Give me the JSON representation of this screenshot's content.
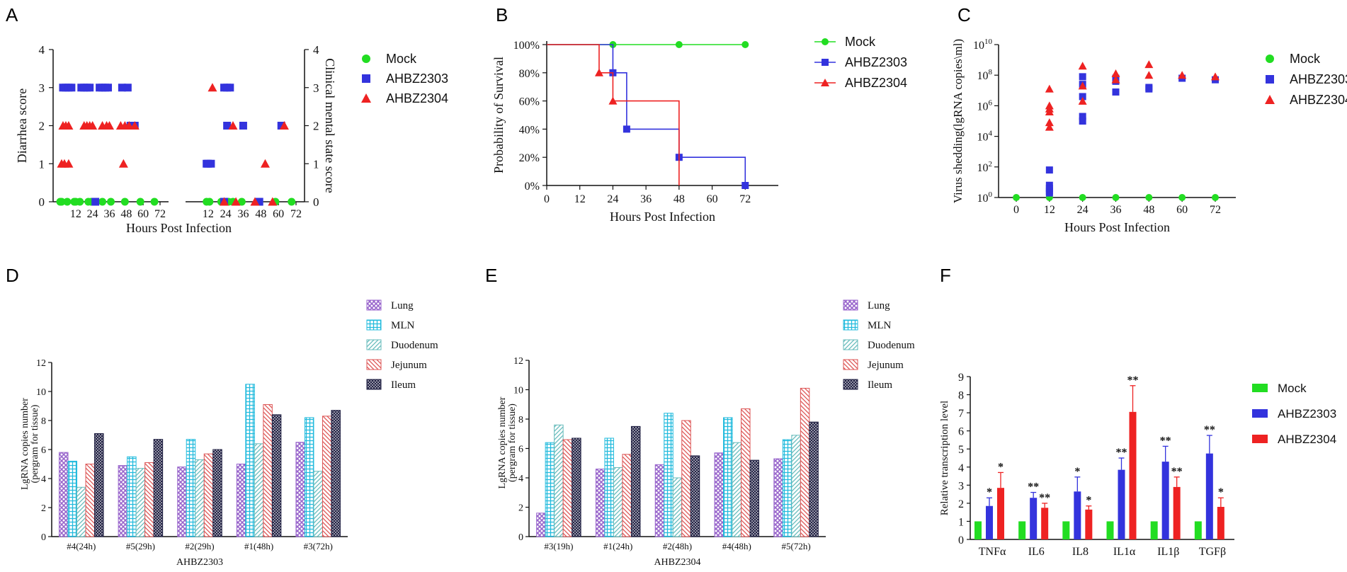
{
  "colors": {
    "mock": "#22dd22",
    "ahbz2303": "#3333dd",
    "ahbz2304": "#ee2222",
    "lung": "#9966cc",
    "mln": "#22bbdd",
    "duodenum": "#66bbbb",
    "jejunum": "#dd5555",
    "ileum": "#222244"
  },
  "chart_data": [
    {
      "panel": "A",
      "type": "scatter",
      "xlabel": "Hours Post Infection",
      "ylabel_left": "Diarrhea score",
      "ylabel_right": "Clinical mental state score",
      "ylim": [
        0,
        4
      ],
      "yticks": [
        "0",
        "1",
        "2",
        "3",
        "4"
      ],
      "xticks_left": [
        "12",
        "24",
        "36",
        "48",
        "60",
        "72"
      ],
      "xticks_right": [
        "12",
        "24",
        "36",
        "48",
        "60",
        "72"
      ],
      "legend": [
        "Mock",
        "AHBZ2303",
        "AHBZ2304"
      ],
      "series": [
        {
          "name": "Mock",
          "diarrhea": [
            [
              0,
              0
            ],
            [
              1,
              0
            ],
            [
              5,
              0
            ],
            [
              10,
              0
            ],
            [
              11,
              0
            ],
            [
              14,
              0
            ],
            [
              20,
              0
            ],
            [
              22,
              0
            ],
            [
              30,
              0
            ],
            [
              36,
              0
            ],
            [
              46,
              0
            ],
            [
              57,
              0
            ],
            [
              67,
              0
            ]
          ],
          "mental": [
            [
              10,
              0
            ],
            [
              12,
              0
            ],
            [
              20,
              0
            ],
            [
              25,
              0
            ],
            [
              28,
              0
            ],
            [
              34,
              0
            ],
            [
              46,
              0
            ],
            [
              57,
              0
            ],
            [
              68,
              0
            ]
          ]
        },
        {
          "name": "AHBZ2303",
          "diarrhea": [
            [
              2,
              3
            ],
            [
              4,
              3
            ],
            [
              6,
              3
            ],
            [
              8,
              3
            ],
            [
              15,
              3
            ],
            [
              17,
              3
            ],
            [
              19,
              3
            ],
            [
              21,
              3
            ],
            [
              28,
              3
            ],
            [
              30,
              3
            ],
            [
              32,
              3
            ],
            [
              34,
              3
            ],
            [
              44,
              3
            ],
            [
              48,
              3
            ],
            [
              50,
              2
            ],
            [
              53,
              2
            ],
            [
              25,
              0
            ]
          ],
          "mental": [
            [
              10,
              1
            ],
            [
              11,
              1
            ],
            [
              13,
              1
            ],
            [
              22,
              3
            ],
            [
              24,
              3
            ],
            [
              26,
              3
            ],
            [
              24,
              2
            ],
            [
              35,
              2
            ],
            [
              61,
              2
            ],
            [
              22,
              0
            ],
            [
              46,
              0
            ]
          ]
        },
        {
          "name": "AHBZ2304",
          "diarrhea": [
            [
              2,
              2
            ],
            [
              4,
              2
            ],
            [
              6,
              2
            ],
            [
              1,
              1
            ],
            [
              3,
              1
            ],
            [
              6,
              1
            ],
            [
              17,
              2
            ],
            [
              19,
              2
            ],
            [
              21,
              2
            ],
            [
              23,
              2
            ],
            [
              30,
              2
            ],
            [
              33,
              2
            ],
            [
              35,
              2
            ],
            [
              43,
              2
            ],
            [
              46,
              2
            ],
            [
              49,
              2
            ],
            [
              53,
              2
            ],
            [
              45,
              1
            ]
          ],
          "mental": [
            [
              14,
              3
            ],
            [
              28,
              2
            ],
            [
              50,
              1
            ],
            [
              63,
              2
            ],
            [
              22,
              0
            ],
            [
              30,
              0
            ],
            [
              43,
              0
            ],
            [
              55,
              0
            ]
          ]
        }
      ]
    },
    {
      "panel": "B",
      "type": "line",
      "xlabel": "Hours Post Infection",
      "ylabel": "Probability of Survival",
      "xlim": [
        0,
        84
      ],
      "xticks": [
        "0",
        "12",
        "24",
        "36",
        "48",
        "60",
        "72"
      ],
      "ylim": [
        0,
        100
      ],
      "yticks": [
        "0%",
        "20%",
        "40%",
        "60%",
        "80%",
        "100%"
      ],
      "legend": [
        "Mock",
        "AHBZ2303",
        "AHBZ2304"
      ],
      "series": [
        {
          "name": "Mock",
          "steps": [
            [
              0,
              100
            ],
            [
              72,
              100
            ]
          ],
          "markers": [
            [
              24,
              100
            ],
            [
              48,
              100
            ],
            [
              72,
              100
            ]
          ]
        },
        {
          "name": "AHBZ2303",
          "steps": [
            [
              0,
              100
            ],
            [
              24,
              100
            ],
            [
              24,
              80
            ],
            [
              29,
              80
            ],
            [
              29,
              40
            ],
            [
              48,
              40
            ],
            [
              48,
              20
            ],
            [
              72,
              20
            ],
            [
              72,
              0
            ]
          ],
          "markers": [
            [
              24,
              80
            ],
            [
              29,
              40
            ],
            [
              48,
              20
            ],
            [
              72,
              0
            ]
          ]
        },
        {
          "name": "AHBZ2304",
          "steps": [
            [
              0,
              100
            ],
            [
              19,
              100
            ],
            [
              19,
              80
            ],
            [
              24,
              80
            ],
            [
              24,
              60
            ],
            [
              48,
              60
            ],
            [
              48,
              0
            ]
          ],
          "markers": [
            [
              19,
              80
            ],
            [
              24,
              60
            ]
          ]
        }
      ]
    },
    {
      "panel": "C",
      "type": "scatter",
      "xlabel": "Hours Post Infection",
      "ylabel": "Virus shedding(lgRNA copies\\ml)",
      "xticks": [
        "0",
        "12",
        "24",
        "36",
        "48",
        "60",
        "72"
      ],
      "ylim_log10": [
        0,
        10
      ],
      "ytick_base": "10",
      "ytick_exponents": [
        "0",
        "2",
        "4",
        "6",
        "8",
        "10"
      ],
      "legend": [
        "Mock",
        "AHBZ2303",
        "AHBZ2304"
      ],
      "series": [
        {
          "name": "Mock",
          "log10": [
            [
              0,
              0
            ],
            [
              12,
              0
            ],
            [
              24,
              0
            ],
            [
              36,
              0
            ],
            [
              48,
              0
            ],
            [
              60,
              0
            ],
            [
              72,
              0
            ]
          ]
        },
        {
          "name": "AHBZ2303",
          "log10": [
            [
              12,
              1.8
            ],
            [
              12,
              0.8
            ],
            [
              12,
              0.6
            ],
            [
              12,
              0.4
            ],
            [
              12,
              0.3
            ],
            [
              24,
              7.9
            ],
            [
              24,
              7.4
            ],
            [
              24,
              6.6
            ],
            [
              24,
              5.3
            ],
            [
              24,
              5.0
            ],
            [
              36,
              7.8
            ],
            [
              36,
              7.6
            ],
            [
              36,
              6.9
            ],
            [
              48,
              7.2
            ],
            [
              48,
              7.1
            ],
            [
              60,
              7.8
            ],
            [
              72,
              7.7
            ]
          ]
        },
        {
          "name": "AHBZ2304",
          "log10": [
            [
              12,
              7.1
            ],
            [
              12,
              6.0
            ],
            [
              12,
              5.8
            ],
            [
              12,
              5.6
            ],
            [
              12,
              4.9
            ],
            [
              12,
              4.6
            ],
            [
              24,
              8.6
            ],
            [
              24,
              7.3
            ],
            [
              24,
              6.3
            ],
            [
              36,
              8.1
            ],
            [
              36,
              7.7
            ],
            [
              48,
              8.7
            ],
            [
              48,
              8.0
            ],
            [
              60,
              8.0
            ],
            [
              72,
              7.9
            ]
          ]
        }
      ]
    },
    {
      "panel": "D",
      "type": "bar",
      "xlabel": "AHBZ2303",
      "ylabel": "LgRNA copies number (pergram for tissue)",
      "categories": [
        "#4(24h)",
        "#5(29h)",
        "#2(29h)",
        "#1(48h)",
        "#3(72h)"
      ],
      "ylim": [
        0,
        12
      ],
      "yticks": [
        "0",
        "2",
        "4",
        "6",
        "8",
        "10",
        "12"
      ],
      "series": [
        {
          "name": "Lung",
          "values": [
            5.8,
            4.9,
            4.8,
            5.0,
            6.5
          ]
        },
        {
          "name": "MLN",
          "values": [
            5.2,
            5.5,
            6.7,
            10.5,
            8.2
          ]
        },
        {
          "name": "Duodenum",
          "values": [
            3.4,
            4.7,
            5.3,
            6.4,
            4.5
          ]
        },
        {
          "name": "Jejunum",
          "values": [
            5.0,
            5.1,
            5.7,
            9.1,
            8.3
          ]
        },
        {
          "name": "Ileum",
          "values": [
            7.1,
            6.7,
            6.0,
            8.4,
            8.7
          ]
        }
      ]
    },
    {
      "panel": "E",
      "type": "bar",
      "xlabel": "AHBZ2304",
      "ylabel": "LgRNA copies number (pergram for tissue)",
      "categories": [
        "#3(19h)",
        "#1(24h)",
        "#2(48h)",
        "#4(48h)",
        "#5(72h)"
      ],
      "ylim": [
        0,
        12
      ],
      "yticks": [
        "0",
        "2",
        "4",
        "6",
        "8",
        "10",
        "12"
      ],
      "series": [
        {
          "name": "Lung",
          "values": [
            1.6,
            4.6,
            4.9,
            5.7,
            5.3
          ]
        },
        {
          "name": "MLN",
          "values": [
            6.4,
            6.7,
            8.4,
            8.1,
            6.6
          ]
        },
        {
          "name": "Duodenum",
          "values": [
            7.6,
            4.7,
            4.0,
            6.4,
            6.9
          ]
        },
        {
          "name": "Jejunum",
          "values": [
            6.6,
            5.6,
            7.9,
            8.7,
            10.1
          ]
        },
        {
          "name": "Ileum",
          "values": [
            6.7,
            7.5,
            5.5,
            5.2,
            7.8
          ]
        }
      ]
    },
    {
      "panel": "F",
      "type": "bar",
      "xlabel": "",
      "ylabel": "Relative transcription level",
      "categories": [
        "TNFα",
        "IL6",
        "IL8",
        "IL1α",
        "IL1β",
        "TGFβ"
      ],
      "ylim": [
        0,
        9
      ],
      "yticks": [
        "0",
        "1",
        "2",
        "3",
        "4",
        "5",
        "6",
        "7",
        "8",
        "9"
      ],
      "series": [
        {
          "name": "Mock",
          "values": [
            1.0,
            1.0,
            1.0,
            1.0,
            1.0,
            1.0
          ],
          "errors": [
            0,
            0,
            0,
            0,
            0,
            0
          ],
          "sig": [
            "",
            "",
            "",
            "",
            "",
            ""
          ]
        },
        {
          "name": "AHBZ2303",
          "values": [
            1.85,
            2.3,
            2.65,
            3.85,
            4.3,
            4.75
          ],
          "errors": [
            0.45,
            0.3,
            0.8,
            0.65,
            0.85,
            1.0
          ],
          "sig": [
            "*",
            "**",
            "*",
            "**",
            "**",
            "**"
          ]
        },
        {
          "name": "AHBZ2304",
          "values": [
            2.85,
            1.75,
            1.65,
            7.05,
            2.9,
            1.8
          ],
          "errors": [
            0.85,
            0.25,
            0.2,
            1.45,
            0.55,
            0.5
          ],
          "sig": [
            "*",
            "**",
            "*",
            "**",
            "**",
            "*"
          ]
        }
      ]
    }
  ],
  "labels": {
    "panelA": "A",
    "panelB": "B",
    "panelC": "C",
    "panelD": "D",
    "panelE": "E",
    "panelF": "F"
  }
}
